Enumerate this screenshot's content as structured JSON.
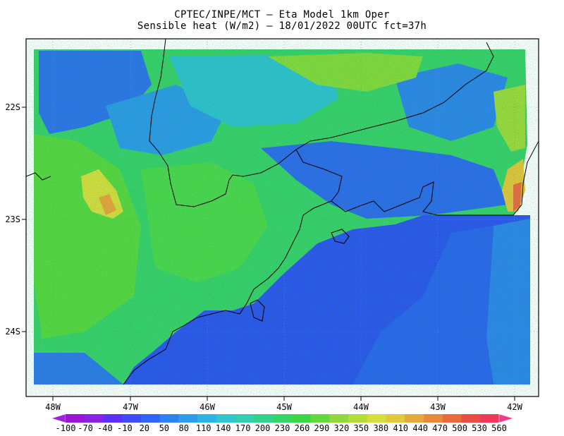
{
  "title": {
    "line1": "CPTEC/INPE/MCT –  Eta Model 1km Oper",
    "line2": "Sensible heat (W/m2) – 18/01/2022 00UTC fct=37h"
  },
  "map": {
    "lon_ticks": [
      "48W",
      "47W",
      "46W",
      "45W",
      "44W",
      "43W",
      "42W"
    ],
    "lat_ticks": [
      "22S",
      "23S",
      "24S"
    ],
    "ocean_color": "#2e55ee",
    "land_colors": [
      "#2f8de8",
      "#37c2df",
      "#2fd08a",
      "#5bd642",
      "#8ed83a",
      "#e0e03a",
      "#ee9b36"
    ]
  },
  "colorbar": {
    "labels": [
      "-100",
      "-70",
      "-40",
      "-10",
      "20",
      "50",
      "80",
      "110",
      "140",
      "170",
      "200",
      "230",
      "260",
      "290",
      "320",
      "350",
      "380",
      "410",
      "440",
      "470",
      "500",
      "530",
      "560"
    ],
    "colors": [
      "#9b15d8",
      "#8a22e6",
      "#5c30f0",
      "#3d4df2",
      "#2e66f0",
      "#2c82ee",
      "#2c9dec",
      "#2db4e6",
      "#2fc6d0",
      "#30cfae",
      "#31d38a",
      "#32d666",
      "#39d843",
      "#62d83c",
      "#8fda3a",
      "#b4dc3a",
      "#d6de3c",
      "#e2c83c",
      "#e6a83a",
      "#e88a3a",
      "#ea6a3c",
      "#ec4a44",
      "#ee3a5a"
    ],
    "low_arrow_color": "#a020e0",
    "high_arrow_color": "#f03c8c"
  }
}
